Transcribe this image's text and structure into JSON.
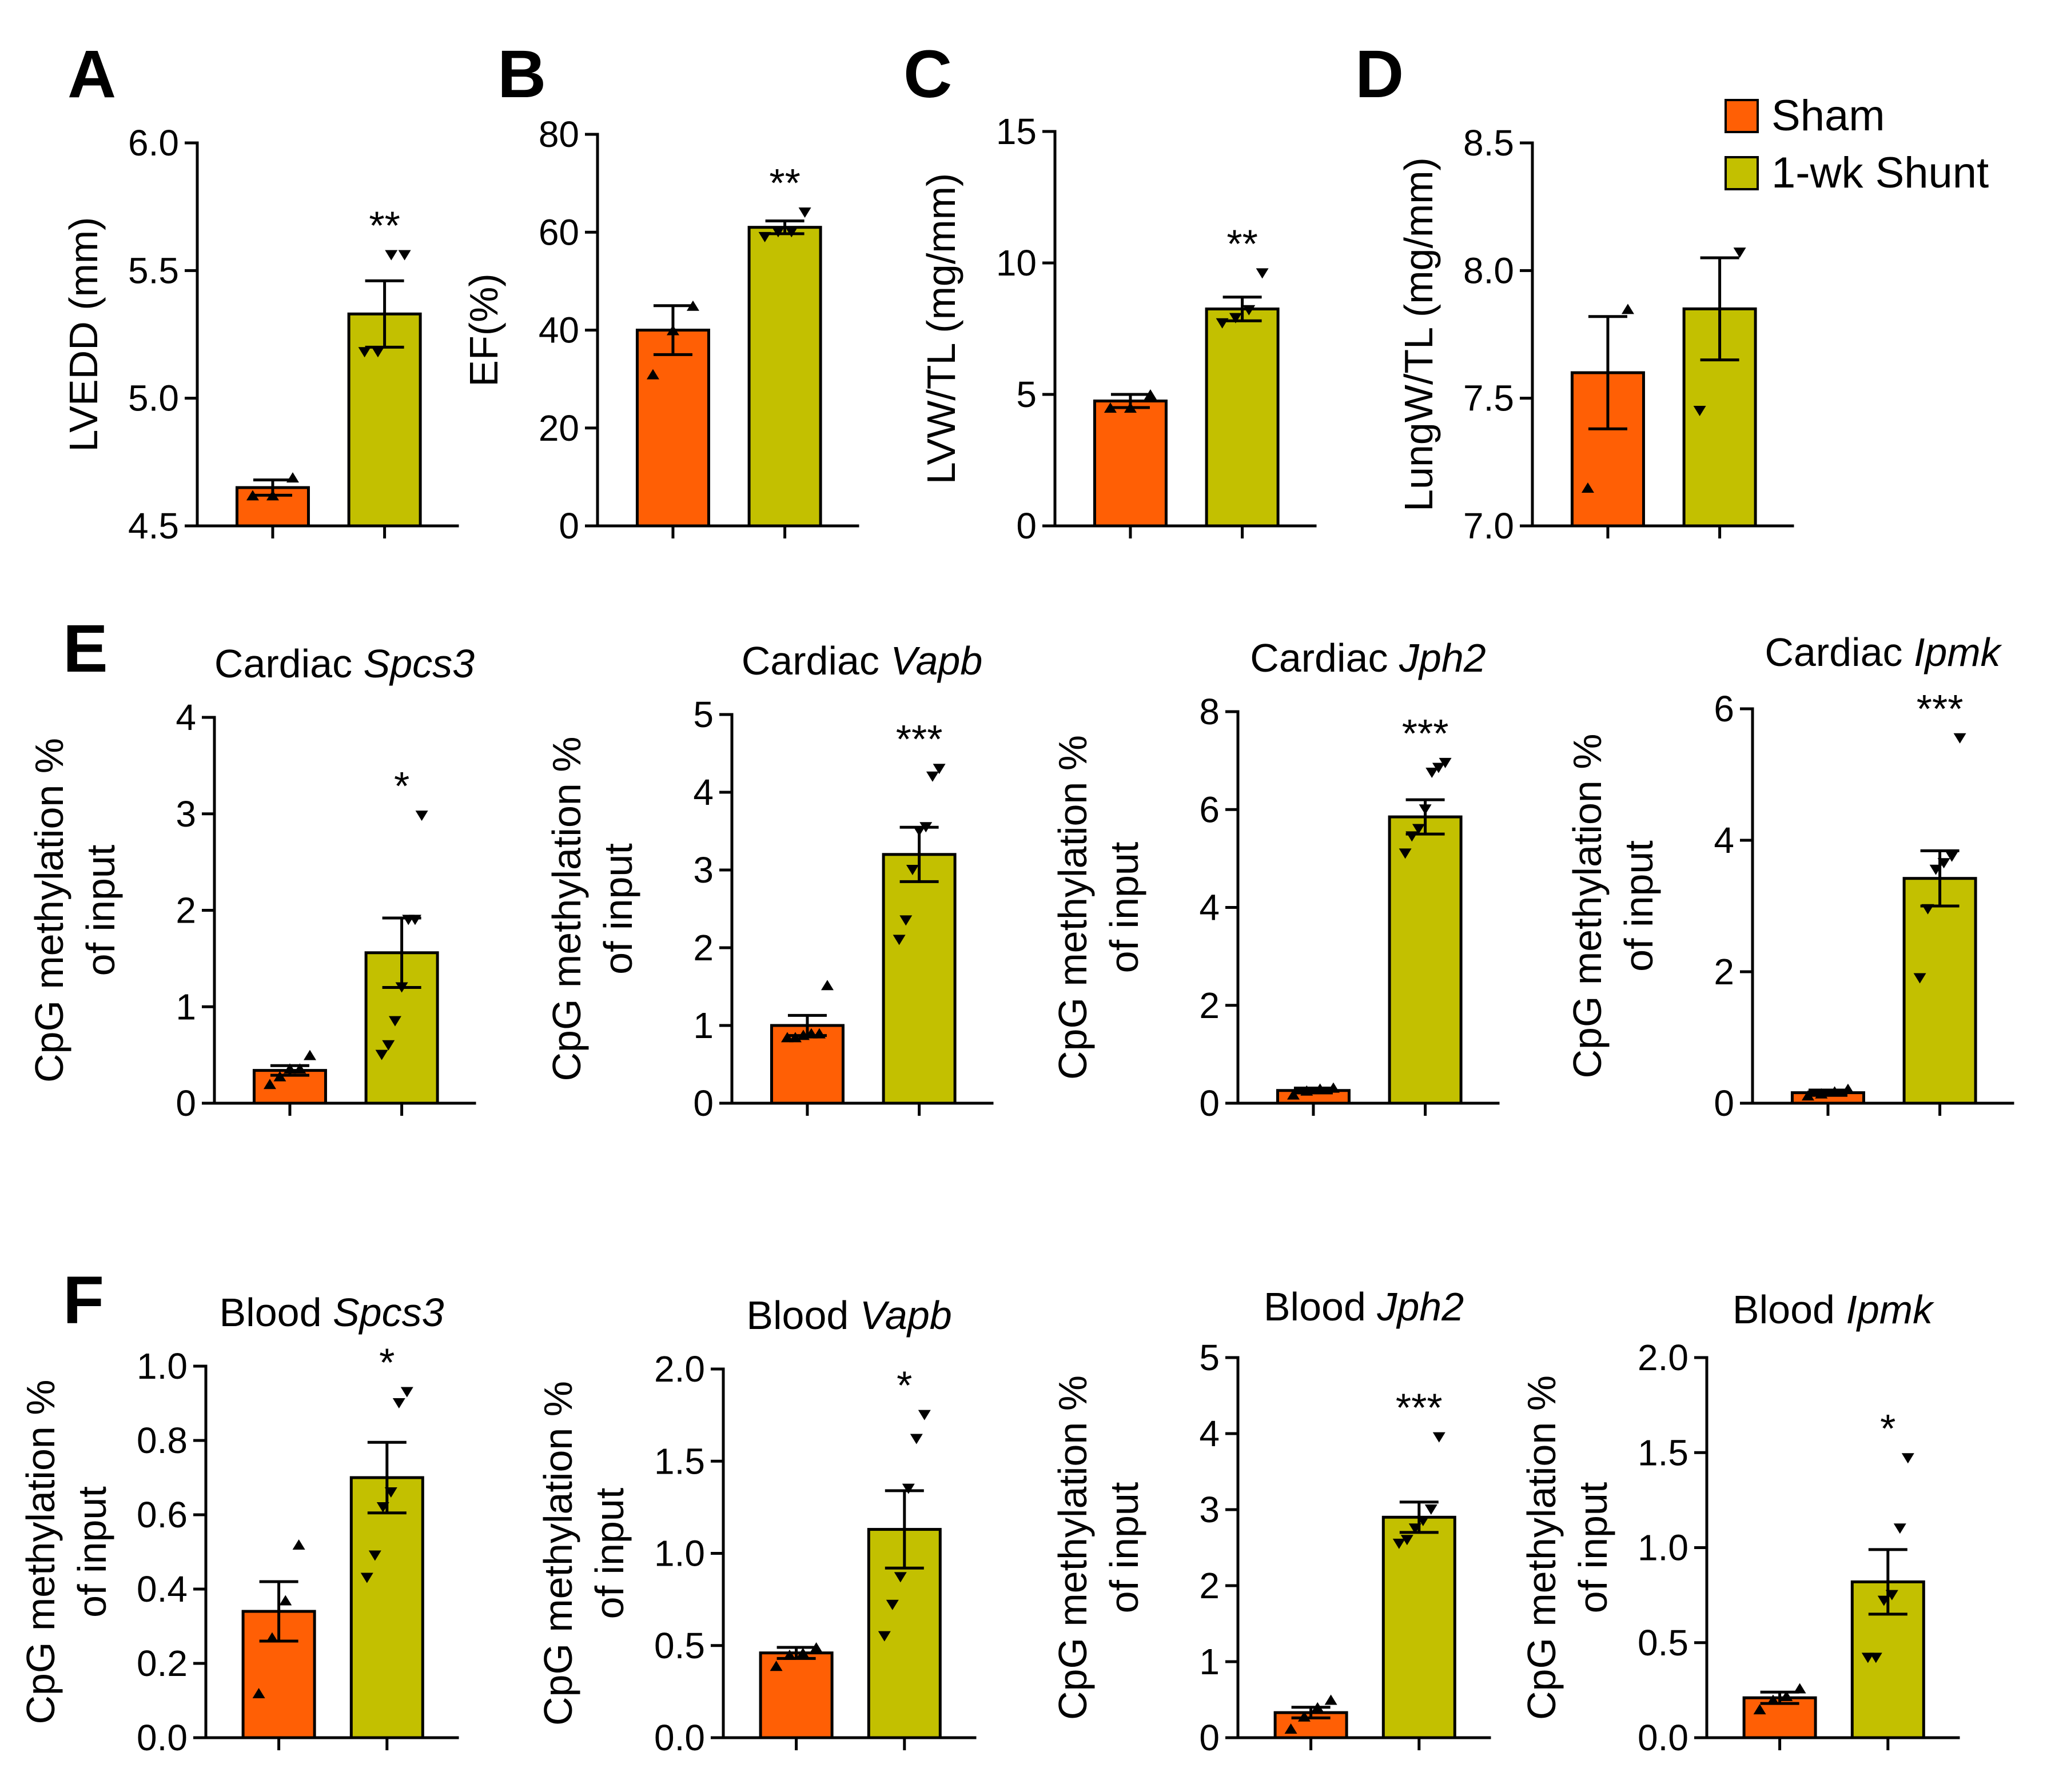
{
  "legend": {
    "items": [
      {
        "label": "Sham",
        "color": "#FF5F05"
      },
      {
        "label": "1-wk Shunt",
        "color": "#C3C000"
      }
    ]
  },
  "chart_data": [
    {
      "id": "A",
      "letter": "A",
      "type": "bar",
      "title": "",
      "title_gene": "",
      "ylabel": [
        "LVEDD (mm)"
      ],
      "ylim": [
        4.5,
        6.0
      ],
      "yticks": [
        "4.5",
        "5.0",
        "5.5",
        "6.0"
      ],
      "categories": [
        "Sham",
        "1-wk Shunt"
      ],
      "series": [
        {
          "name": "Sham",
          "value": 4.65,
          "sem": 0.03,
          "points": [
            4.62,
            4.62,
            4.69
          ],
          "marker": "up",
          "sig": ""
        },
        {
          "name": "1-wk Shunt",
          "value": 5.33,
          "sem": 0.13,
          "points": [
            5.18,
            5.18,
            5.56,
            5.56
          ],
          "marker": "down",
          "sig": "**"
        }
      ]
    },
    {
      "id": "B",
      "letter": "B",
      "type": "bar",
      "title": "",
      "title_gene": "",
      "ylabel": [
        "EF(%)"
      ],
      "ylim": [
        0,
        80
      ],
      "yticks": [
        "0",
        "20",
        "40",
        "60",
        "80"
      ],
      "categories": [
        "Sham",
        "1-wk Shunt"
      ],
      "series": [
        {
          "name": "Sham",
          "value": 40,
          "sem": 5,
          "points": [
            31,
            40,
            45
          ],
          "marker": "up",
          "sig": ""
        },
        {
          "name": "1-wk Shunt",
          "value": 61,
          "sem": 1.3,
          "points": [
            59,
            60,
            60,
            64
          ],
          "marker": "down",
          "sig": "**"
        }
      ]
    },
    {
      "id": "C",
      "letter": "C",
      "type": "bar",
      "title": "",
      "title_gene": "",
      "ylabel": [
        "LVW/TL (mg/mm)"
      ],
      "ylim": [
        0,
        15
      ],
      "yticks": [
        "0",
        "5",
        "10",
        "15"
      ],
      "categories": [
        "Sham",
        "1-wk Shunt"
      ],
      "series": [
        {
          "name": "Sham",
          "value": 4.75,
          "sem": 0.25,
          "points": [
            4.5,
            4.5,
            5.0
          ],
          "marker": "up",
          "sig": ""
        },
        {
          "name": "1-wk Shunt",
          "value": 8.25,
          "sem": 0.45,
          "points": [
            7.7,
            7.9,
            8.2,
            9.6
          ],
          "marker": "down",
          "sig": "**"
        }
      ]
    },
    {
      "id": "D",
      "letter": "D",
      "type": "bar",
      "title": "",
      "title_gene": "",
      "ylabel": [
        "LungW/TL (mg/mm)"
      ],
      "ylim": [
        7.0,
        8.5
      ],
      "yticks": [
        "7.0",
        "7.5",
        "8.0",
        "8.5"
      ],
      "categories": [
        "Sham",
        "1-wk Shunt"
      ],
      "series": [
        {
          "name": "Sham",
          "value": 7.6,
          "sem": 0.22,
          "points": [
            7.15,
            7.85
          ],
          "marker": "up",
          "sig": ""
        },
        {
          "name": "1-wk Shunt",
          "value": 7.85,
          "sem": 0.2,
          "points": [
            7.45,
            8.07
          ],
          "marker": "down",
          "sig": ""
        }
      ]
    },
    {
      "id": "E1",
      "letter": "E",
      "type": "bar",
      "title": "Cardiac ",
      "title_gene": "Spcs3",
      "ylabel": [
        "CpG methylation %",
        "of input"
      ],
      "ylim": [
        0,
        4
      ],
      "yticks": [
        "0",
        "1",
        "2",
        "3",
        "4"
      ],
      "categories": [
        "Sham",
        "1-wk Shunt"
      ],
      "series": [
        {
          "name": "Sham",
          "value": 0.34,
          "sem": 0.05,
          "points": [
            0.2,
            0.28,
            0.36,
            0.36,
            0.5
          ],
          "marker": "up",
          "sig": ""
        },
        {
          "name": "1-wk Shunt",
          "value": 1.56,
          "sem": 0.36,
          "points": [
            0.5,
            0.6,
            0.85,
            1.2,
            1.9,
            1.9,
            2.98
          ],
          "marker": "down",
          "sig": "*"
        }
      ]
    },
    {
      "id": "E2",
      "letter": "",
      "type": "bar",
      "title": "Cardiac ",
      "title_gene": "Vapb",
      "ylabel": [
        "CpG methylation %",
        "of input"
      ],
      "ylim": [
        0,
        5
      ],
      "yticks": [
        "0",
        "1",
        "2",
        "3",
        "4",
        "5"
      ],
      "categories": [
        "Sham",
        "1-wk Shunt"
      ],
      "series": [
        {
          "name": "Sham",
          "value": 1.0,
          "sem": 0.13,
          "points": [
            0.85,
            0.85,
            0.88,
            0.9,
            0.9,
            1.52
          ],
          "marker": "up",
          "sig": ""
        },
        {
          "name": "1-wk Shunt",
          "value": 3.2,
          "sem": 0.35,
          "points": [
            2.1,
            2.35,
            3.0,
            3.5,
            3.55,
            4.2,
            4.3
          ],
          "marker": "down",
          "sig": "***"
        }
      ]
    },
    {
      "id": "E3",
      "letter": "",
      "type": "bar",
      "title": "Cardiac ",
      "title_gene": "Jph2",
      "ylabel": [
        "CpG methylation %",
        "of input"
      ],
      "ylim": [
        0,
        8
      ],
      "yticks": [
        "0",
        "2",
        "4",
        "6",
        "8"
      ],
      "categories": [
        "Sham",
        "1-wk Shunt"
      ],
      "series": [
        {
          "name": "Sham",
          "value": 0.26,
          "sem": 0.05,
          "points": [
            0.18,
            0.26,
            0.3,
            0.32
          ],
          "marker": "up",
          "sig": ""
        },
        {
          "name": "1-wk Shunt",
          "value": 5.85,
          "sem": 0.35,
          "points": [
            5.1,
            5.45,
            5.6,
            6.0,
            6.75,
            6.85,
            6.95
          ],
          "marker": "down",
          "sig": "***"
        }
      ]
    },
    {
      "id": "E4",
      "letter": "",
      "type": "bar",
      "title": "Cardiac ",
      "title_gene": "Ipmk",
      "ylabel": [
        "CpG methylation %",
        "of input"
      ],
      "ylim": [
        0,
        6
      ],
      "yticks": [
        "0",
        "2",
        "4",
        "6"
      ],
      "categories": [
        "Sham",
        "1-wk Shunt"
      ],
      "series": [
        {
          "name": "Sham",
          "value": 0.16,
          "sem": 0.04,
          "points": [
            0.12,
            0.15,
            0.18,
            0.22
          ],
          "marker": "up",
          "sig": ""
        },
        {
          "name": "1-wk Shunt",
          "value": 3.42,
          "sem": 0.42,
          "points": [
            1.9,
            2.95,
            3.55,
            3.65,
            3.75,
            5.55
          ],
          "marker": "down",
          "sig": "***"
        }
      ]
    },
    {
      "id": "F1",
      "letter": "F",
      "type": "bar",
      "title": "Blood ",
      "title_gene": "Spcs3",
      "ylabel": [
        "CpG methylation %",
        "of input"
      ],
      "ylim": [
        0,
        1.0
      ],
      "yticks": [
        "0.0",
        "0.2",
        "0.4",
        "0.6",
        "0.8",
        "1.0"
      ],
      "categories": [
        "Sham",
        "1-wk Shunt"
      ],
      "series": [
        {
          "name": "Sham",
          "value": 0.34,
          "sem": 0.08,
          "points": [
            0.12,
            0.27,
            0.37,
            0.52
          ],
          "marker": "up",
          "sig": ""
        },
        {
          "name": "1-wk Shunt",
          "value": 0.7,
          "sem": 0.095,
          "points": [
            0.43,
            0.49,
            0.62,
            0.66,
            0.9,
            0.93
          ],
          "marker": "down",
          "sig": "*"
        }
      ]
    },
    {
      "id": "F2",
      "letter": "",
      "type": "bar",
      "title": "Blood ",
      "title_gene": "Vapb",
      "ylabel": [
        "CpG methylation %",
        "of input"
      ],
      "ylim": [
        0,
        2.0
      ],
      "yticks": [
        "0.0",
        "0.5",
        "1.0",
        "1.5",
        "2.0"
      ],
      "categories": [
        "Sham",
        "1-wk Shunt"
      ],
      "series": [
        {
          "name": "Sham",
          "value": 0.46,
          "sem": 0.03,
          "points": [
            0.39,
            0.45,
            0.46,
            0.49
          ],
          "marker": "up",
          "sig": ""
        },
        {
          "name": "1-wk Shunt",
          "value": 1.13,
          "sem": 0.21,
          "points": [
            0.55,
            0.72,
            0.87,
            1.35,
            1.62,
            1.75
          ],
          "marker": "down",
          "sig": "*"
        }
      ]
    },
    {
      "id": "F3",
      "letter": "",
      "type": "bar",
      "title": "Blood ",
      "title_gene": "Jph2",
      "ylabel": [
        "CpG methylation %",
        "of input"
      ],
      "ylim": [
        0,
        5
      ],
      "yticks": [
        "0",
        "1",
        "2",
        "3",
        "4",
        "5"
      ],
      "categories": [
        "Sham",
        "1-wk Shunt"
      ],
      "series": [
        {
          "name": "Sham",
          "value": 0.33,
          "sem": 0.07,
          "points": [
            0.12,
            0.28,
            0.4,
            0.5
          ],
          "marker": "up",
          "sig": ""
        },
        {
          "name": "1-wk Shunt",
          "value": 2.9,
          "sem": 0.2,
          "points": [
            2.55,
            2.6,
            2.75,
            2.85,
            3.0,
            3.95
          ],
          "marker": "down",
          "sig": "***"
        }
      ]
    },
    {
      "id": "F4",
      "letter": "",
      "type": "bar",
      "title": "Blood ",
      "title_gene": "Ipmk",
      "ylabel": [
        "CpG methylation %",
        "of input"
      ],
      "ylim": [
        0,
        2.0
      ],
      "yticks": [
        "0.0",
        "0.5",
        "1.0",
        "1.5",
        "2.0"
      ],
      "categories": [
        "Sham",
        "1-wk Shunt"
      ],
      "series": [
        {
          "name": "Sham",
          "value": 0.21,
          "sem": 0.03,
          "points": [
            0.15,
            0.2,
            0.22,
            0.26
          ],
          "marker": "up",
          "sig": ""
        },
        {
          "name": "1-wk Shunt",
          "value": 0.82,
          "sem": 0.17,
          "points": [
            0.42,
            0.42,
            0.72,
            0.75,
            1.1,
            1.47
          ],
          "marker": "down",
          "sig": "*"
        }
      ]
    }
  ]
}
